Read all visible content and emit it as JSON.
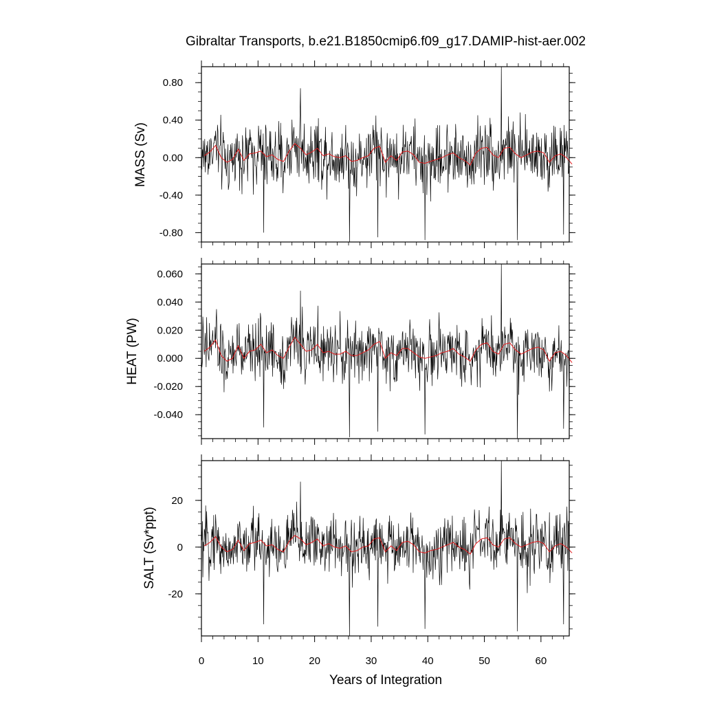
{
  "chart_data": {
    "type": "line",
    "title": "Gibraltar Transports, b.e21.B1850cmip6.f09_g17.DAMIP-hist-aer.002",
    "xlabel": "Years of Integration",
    "xlim": [
      0,
      65
    ],
    "xticks": [
      0,
      10,
      20,
      30,
      40,
      50,
      60
    ],
    "xtick_labels": [
      "0",
      "10",
      "20",
      "30",
      "40",
      "50",
      "60"
    ],
    "samples_per_year": 12,
    "line_colors": {
      "monthly": "#000000",
      "annual_mean": "#e41a1c"
    },
    "grid": false,
    "panels": [
      {
        "id": "mass",
        "ylabel": "MASS (Sv)",
        "ylim": [
          -0.9,
          0.97
        ],
        "yticks": [
          0.8,
          0.4,
          0.0,
          -0.4,
          -0.8
        ],
        "ytick_labels": [
          "0.80",
          "0.40",
          "0.00",
          "-0.40",
          "-0.80"
        ],
        "noise_scale": 0.2,
        "spikes": [
          [
            11.0,
            -0.8
          ],
          [
            17.5,
            0.74
          ],
          [
            26.2,
            -0.9
          ],
          [
            31.2,
            -0.85
          ],
          [
            39.5,
            -0.88
          ],
          [
            53.0,
            0.97
          ],
          [
            55.8,
            -0.88
          ],
          [
            64.0,
            -0.82
          ]
        ],
        "annual_mean": [
          0.02,
          0.06,
          0.13,
          0.0,
          -0.05,
          -0.02,
          0.09,
          -0.03,
          0.04,
          0.05,
          0.07,
          0.01,
          0.03,
          -0.02,
          -0.04,
          0.07,
          0.15,
          0.1,
          0.03,
          0.06,
          0.1,
          0.02,
          0.04,
          0.01,
          0.0,
          0.02,
          -0.04,
          -0.03,
          0.0,
          0.02,
          0.1,
          0.12,
          -0.05,
          0.02,
          -0.03,
          0.06,
          0.07,
          0.03,
          -0.05,
          -0.06,
          -0.04,
          -0.02,
          0.0,
          0.03,
          0.05,
          0.0,
          -0.03,
          -0.08,
          0.05,
          0.1,
          0.11,
          0.03,
          0.0,
          0.1,
          0.11,
          0.04,
          0.0,
          0.03,
          0.06,
          0.07,
          0.05,
          -0.05,
          0.02,
          0.04,
          0.0,
          -0.07
        ]
      },
      {
        "id": "heat",
        "ylabel": "HEAT (PW)",
        "ylim": [
          -0.057,
          0.067
        ],
        "yticks": [
          0.06,
          0.04,
          0.02,
          0.0,
          -0.02,
          -0.04
        ],
        "ytick_labels": [
          "0.060",
          "0.040",
          "0.020",
          "0.000",
          "-0.020",
          "-0.040"
        ],
        "noise_scale": 0.012,
        "spikes": [
          [
            11.0,
            -0.049
          ],
          [
            17.5,
            0.048
          ],
          [
            26.2,
            -0.056
          ],
          [
            31.2,
            -0.052
          ],
          [
            39.5,
            -0.054
          ],
          [
            53.0,
            0.067
          ],
          [
            55.8,
            -0.057
          ],
          [
            64.0,
            -0.05
          ]
        ],
        "annual_mean": [
          0.005,
          0.008,
          0.013,
          0.002,
          -0.002,
          0.0,
          0.009,
          0.0,
          0.005,
          0.006,
          0.01,
          0.004,
          0.006,
          0.002,
          0.0,
          0.008,
          0.015,
          0.01,
          0.005,
          0.006,
          0.01,
          0.004,
          0.005,
          0.003,
          0.003,
          0.005,
          0.002,
          0.002,
          0.004,
          0.006,
          0.01,
          0.012,
          0.0,
          0.004,
          0.002,
          0.007,
          0.007,
          0.004,
          0.001,
          0.0,
          0.001,
          0.002,
          0.004,
          0.005,
          0.007,
          0.003,
          0.001,
          -0.002,
          0.006,
          0.01,
          0.011,
          0.005,
          0.003,
          0.01,
          0.011,
          0.006,
          0.003,
          0.005,
          0.007,
          0.008,
          0.006,
          -0.002,
          0.004,
          0.005,
          0.002,
          -0.003
        ]
      },
      {
        "id": "salt",
        "ylabel": "SALT (Sv*ppt)",
        "ylim": [
          -38,
          37
        ],
        "yticks": [
          20,
          0,
          -20
        ],
        "ytick_labels": [
          "20",
          "0",
          "-20"
        ],
        "noise_scale": 7.5,
        "spikes": [
          [
            11.0,
            -33
          ],
          [
            17.5,
            28
          ],
          [
            26.2,
            -38
          ],
          [
            31.2,
            -34
          ],
          [
            39.5,
            -35
          ],
          [
            53.0,
            37
          ],
          [
            55.8,
            -36
          ],
          [
            64.0,
            -33
          ]
        ],
        "annual_mean": [
          0.5,
          2.0,
          4.5,
          0.0,
          -2.0,
          -1.0,
          3.0,
          -1.5,
          1.5,
          2.0,
          3.0,
          0.5,
          1.0,
          -1.0,
          -2.0,
          2.5,
          5.0,
          3.5,
          1.0,
          2.0,
          3.5,
          0.5,
          1.5,
          0.0,
          -0.5,
          0.5,
          -2.0,
          -1.5,
          0.0,
          0.5,
          3.5,
          4.0,
          -2.0,
          0.5,
          -1.5,
          2.0,
          2.5,
          1.0,
          -2.0,
          -2.5,
          -1.5,
          -1.0,
          0.0,
          1.0,
          2.0,
          0.0,
          -1.0,
          -3.0,
          1.5,
          3.5,
          4.0,
          1.0,
          0.0,
          3.5,
          4.0,
          1.5,
          0.0,
          1.0,
          2.0,
          2.5,
          1.5,
          -2.0,
          0.5,
          1.5,
          0.0,
          -2.5
        ]
      }
    ]
  }
}
